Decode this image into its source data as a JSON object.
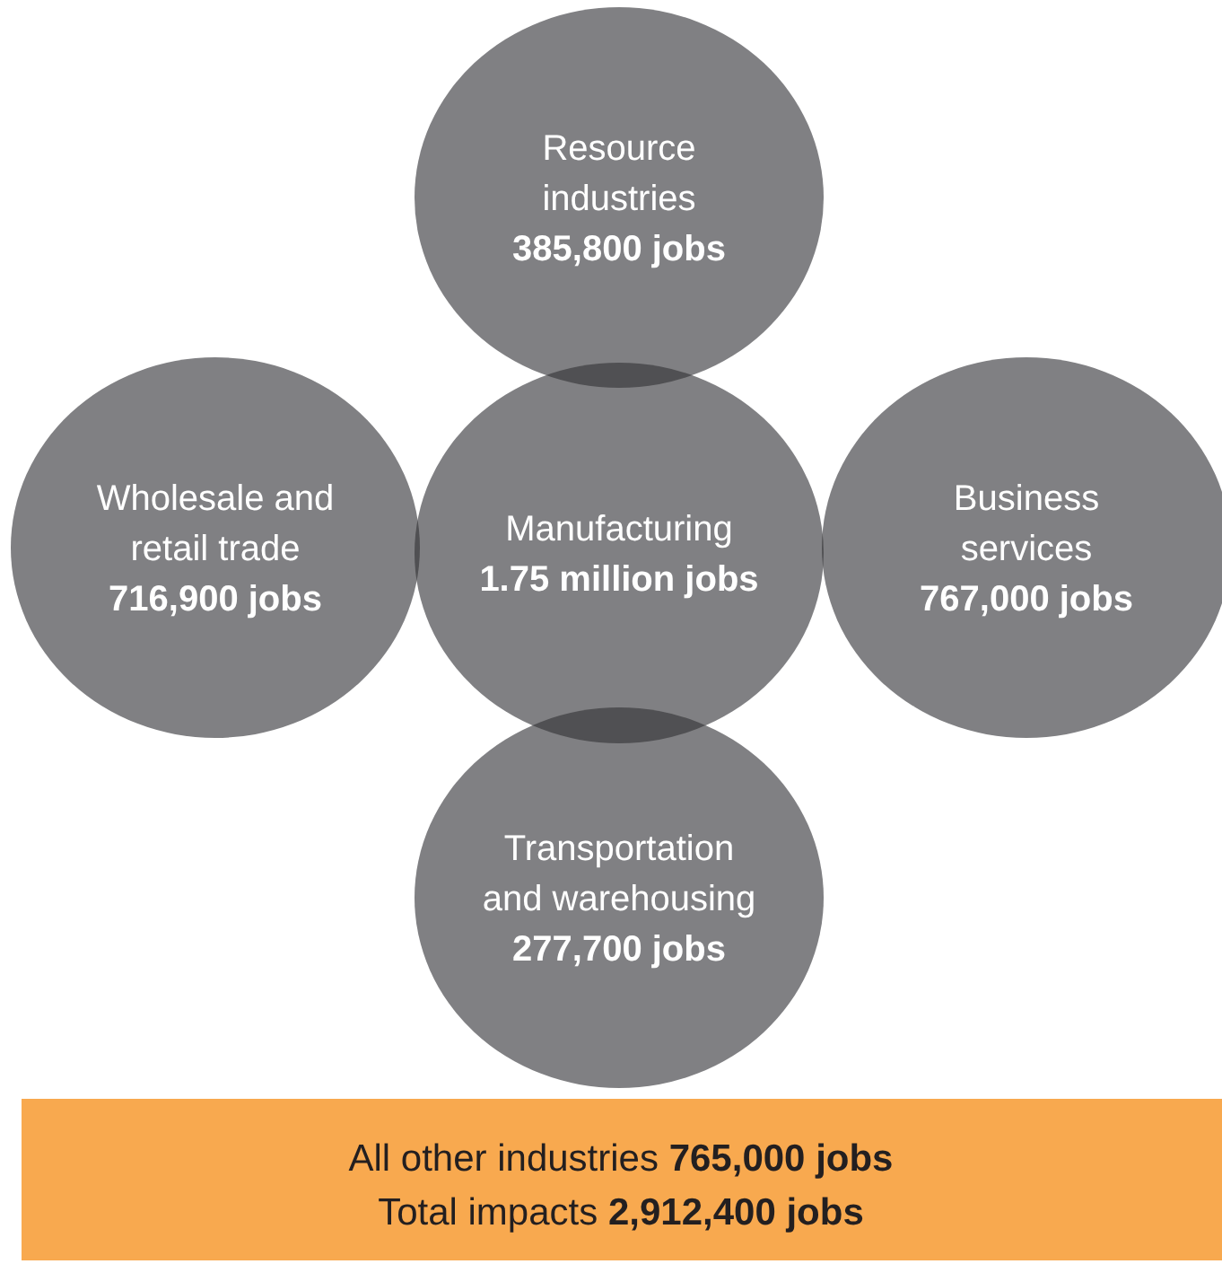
{
  "chart_data": {
    "type": "other",
    "categories": [
      "Resource industries",
      "Wholesale and retail trade",
      "Manufacturing",
      "Business services",
      "Transportation and warehousing",
      "All other industries"
    ],
    "values": [
      385800,
      716900,
      1750000,
      767000,
      277700,
      765000
    ],
    "value_labels": [
      "385,800 jobs",
      "716,900 jobs",
      "1.75 million jobs",
      "767,000 jobs",
      "277,700 jobs",
      "765,000 jobs"
    ],
    "colors": [
      "#808083",
      "#808083",
      "#808083",
      "#808083",
      "#808083",
      "#f8a94f"
    ],
    "annotations": [
      "Total impacts 2,912,400 jobs"
    ]
  }
}
